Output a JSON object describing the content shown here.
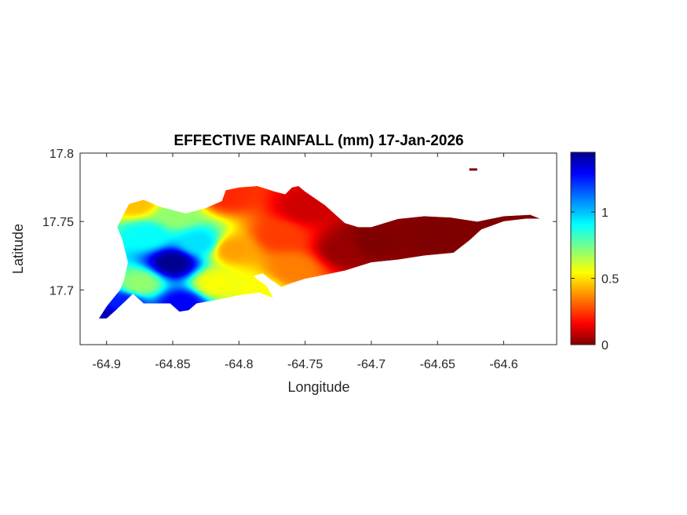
{
  "chart_data": {
    "type": "heatmap",
    "title": "EFFECTIVE RAINFALL (mm) 17-Jan-2026",
    "xlabel": "Longitude",
    "ylabel": "Latitude",
    "xlim": [
      -64.92,
      -64.56
    ],
    "ylim": [
      17.66,
      17.8
    ],
    "x_ticks": [
      -64.9,
      -64.85,
      -64.8,
      -64.75,
      -64.7,
      -64.65,
      -64.6
    ],
    "x_tick_labels": [
      "-64.9",
      "-64.85",
      "-64.8",
      "-64.75",
      "-64.7",
      "-64.65",
      "-64.6"
    ],
    "y_ticks": [
      17.7,
      17.75,
      17.8
    ],
    "y_tick_labels": [
      "17.7",
      "17.75",
      "17.8"
    ],
    "colormap": "jet",
    "colorbar": {
      "range": [
        0,
        1.45
      ],
      "ticks": [
        0,
        0.5,
        1
      ],
      "tick_labels": [
        "0",
        "0.5",
        "1"
      ],
      "placement": "right"
    },
    "grid": false,
    "outline_lonlat": [
      [
        -64.9,
        17.679
      ],
      [
        -64.893,
        17.685
      ],
      [
        -64.88,
        17.697
      ],
      [
        -64.872,
        17.69
      ],
      [
        -64.852,
        17.69
      ],
      [
        -64.845,
        17.684
      ],
      [
        -64.838,
        17.685
      ],
      [
        -64.832,
        17.69
      ],
      [
        -64.82,
        17.692
      ],
      [
        -64.8,
        17.696
      ],
      [
        -64.785,
        17.698
      ],
      [
        -64.774,
        17.694
      ],
      [
        -64.779,
        17.703
      ],
      [
        -64.789,
        17.71
      ],
      [
        -64.782,
        17.712
      ],
      [
        -64.777,
        17.708
      ],
      [
        -64.768,
        17.702
      ],
      [
        -64.76,
        17.705
      ],
      [
        -64.75,
        17.708
      ],
      [
        -64.74,
        17.71
      ],
      [
        -64.72,
        17.714
      ],
      [
        -64.7,
        17.72
      ],
      [
        -64.68,
        17.722
      ],
      [
        -64.66,
        17.725
      ],
      [
        -64.638,
        17.727
      ],
      [
        -64.626,
        17.736
      ],
      [
        -64.617,
        17.744
      ],
      [
        -64.6,
        17.75
      ],
      [
        -64.583,
        17.752
      ],
      [
        -64.572,
        17.752
      ],
      [
        -64.58,
        17.755
      ],
      [
        -64.6,
        17.754
      ],
      [
        -64.62,
        17.75
      ],
      [
        -64.64,
        17.753
      ],
      [
        -64.66,
        17.754
      ],
      [
        -64.68,
        17.752
      ],
      [
        -64.7,
        17.746
      ],
      [
        -64.71,
        17.746
      ],
      [
        -64.72,
        17.749
      ],
      [
        -64.735,
        17.762
      ],
      [
        -64.75,
        17.772
      ],
      [
        -64.755,
        17.776
      ],
      [
        -64.76,
        17.775
      ],
      [
        -64.765,
        17.77
      ],
      [
        -64.773,
        17.772
      ],
      [
        -64.786,
        17.776
      ],
      [
        -64.8,
        17.775
      ],
      [
        -64.81,
        17.773
      ],
      [
        -64.813,
        17.765
      ],
      [
        -64.825,
        17.76
      ],
      [
        -64.84,
        17.756
      ],
      [
        -64.86,
        17.761
      ],
      [
        -64.872,
        17.766
      ],
      [
        -64.883,
        17.763
      ],
      [
        -64.888,
        17.754
      ],
      [
        -64.892,
        17.746
      ],
      [
        -64.888,
        17.736
      ],
      [
        -64.884,
        17.72
      ],
      [
        -64.887,
        17.707
      ],
      [
        -64.89,
        17.7
      ],
      [
        -64.9,
        17.688
      ],
      [
        -64.906,
        17.679
      ]
    ],
    "islet_lonlat": [
      [
        -64.626,
        17.788
      ],
      [
        -64.62,
        17.788
      ]
    ],
    "sample_points": [
      {
        "lon": -64.9,
        "lat": 17.68,
        "value": 1.4
      },
      {
        "lon": -64.888,
        "lat": 17.69,
        "value": 1.25
      },
      {
        "lon": -64.875,
        "lat": 17.705,
        "value": 0.7
      },
      {
        "lon": -64.87,
        "lat": 17.74,
        "value": 0.9
      },
      {
        "lon": -64.878,
        "lat": 17.764,
        "value": 0.45
      },
      {
        "lon": -64.85,
        "lat": 17.72,
        "value": 1.45
      },
      {
        "lon": -64.843,
        "lat": 17.69,
        "value": 1.3
      },
      {
        "lon": -64.848,
        "lat": 17.755,
        "value": 0.7
      },
      {
        "lon": -64.83,
        "lat": 17.735,
        "value": 0.95
      },
      {
        "lon": -64.818,
        "lat": 17.705,
        "value": 0.55
      },
      {
        "lon": -64.805,
        "lat": 17.73,
        "value": 0.4
      },
      {
        "lon": -64.81,
        "lat": 17.77,
        "value": 0.22
      },
      {
        "lon": -64.785,
        "lat": 17.7,
        "value": 0.55
      },
      {
        "lon": -64.77,
        "lat": 17.74,
        "value": 0.25
      },
      {
        "lon": -64.76,
        "lat": 17.715,
        "value": 0.35
      },
      {
        "lon": -64.75,
        "lat": 17.76,
        "value": 0.1
      },
      {
        "lon": -64.72,
        "lat": 17.73,
        "value": 0.03
      },
      {
        "lon": -64.7,
        "lat": 17.735,
        "value": 0.0
      },
      {
        "lon": -64.65,
        "lat": 17.74,
        "value": 0.0
      },
      {
        "lon": -64.6,
        "lat": 17.75,
        "value": 0.0
      },
      {
        "lon": -64.575,
        "lat": 17.752,
        "value": 0.0
      }
    ]
  }
}
